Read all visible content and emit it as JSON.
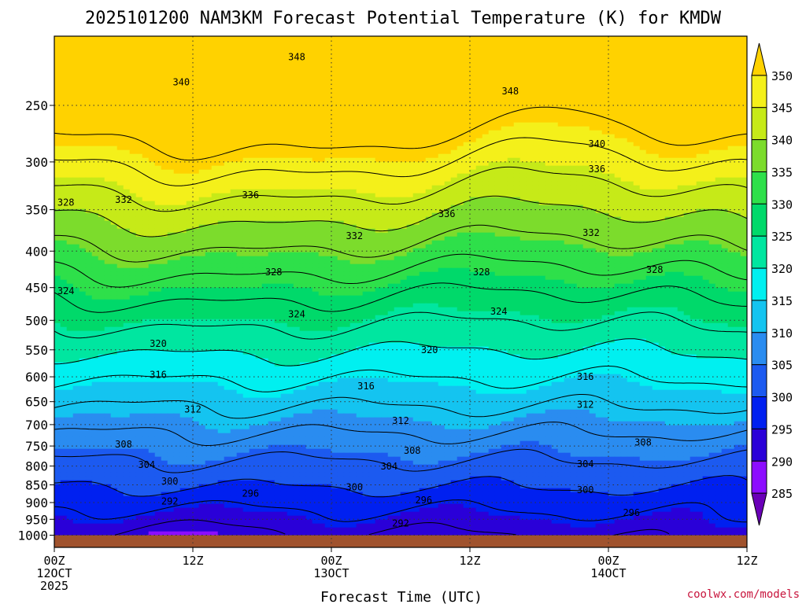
{
  "chart_data": {
    "type": "heatmap",
    "title": "2025101200 NAM3KM Forecast Potential Temperature (K) for KMDW",
    "xlabel": "Forecast Time (UTC)",
    "ylabel": "",
    "pressure_ticks": [
      250,
      300,
      350,
      400,
      450,
      500,
      550,
      600,
      650,
      700,
      750,
      800,
      850,
      900,
      950,
      1000
    ],
    "pressure_range_hpa": [
      200,
      1040
    ],
    "surface_hpa": 1000,
    "x_range_hours": [
      0,
      60
    ],
    "x_ticks": [
      {
        "hour": 0,
        "lines": [
          "00Z",
          "12OCT",
          "2025"
        ]
      },
      {
        "hour": 12,
        "lines": [
          "12Z"
        ]
      },
      {
        "hour": 24,
        "lines": [
          "00Z",
          "13OCT"
        ]
      },
      {
        "hour": 36,
        "lines": [
          "12Z"
        ]
      },
      {
        "hour": 48,
        "lines": [
          "00Z",
          "14OCT"
        ]
      },
      {
        "hour": 60,
        "lines": [
          "12Z"
        ]
      }
    ],
    "colorbar": {
      "levels": [
        285,
        290,
        295,
        300,
        305,
        310,
        315,
        320,
        325,
        330,
        335,
        340,
        345,
        350
      ],
      "colors": [
        "#6a00b8",
        "#8c0dff",
        "#2a00d8",
        "#0020f0",
        "#1c5af0",
        "#2a8cf0",
        "#14c4f0",
        "#00f0f0",
        "#00e6a0",
        "#00d96a",
        "#2ee04a",
        "#7cdc2c",
        "#c6ea18",
        "#f4f01a",
        "#ffd200"
      ],
      "min": 280,
      "max": 355
    },
    "contour_interval_k": 4,
    "contour_labels": [
      {
        "value": 348,
        "hour": 21,
        "p": 214
      },
      {
        "value": 348,
        "hour": 39.5,
        "p": 239
      },
      {
        "value": 340,
        "hour": 11,
        "p": 232
      },
      {
        "value": 340,
        "hour": 47,
        "p": 283
      },
      {
        "value": 336,
        "hour": 47,
        "p": 307
      },
      {
        "value": 336,
        "hour": 17,
        "p": 334
      },
      {
        "value": 336,
        "hour": 34,
        "p": 355
      },
      {
        "value": 332,
        "hour": 6,
        "p": 339
      },
      {
        "value": 332,
        "hour": 26,
        "p": 381
      },
      {
        "value": 332,
        "hour": 46.5,
        "p": 377
      },
      {
        "value": 328,
        "hour": 1,
        "p": 342
      },
      {
        "value": 328,
        "hour": 19,
        "p": 428
      },
      {
        "value": 328,
        "hour": 37,
        "p": 428
      },
      {
        "value": 328,
        "hour": 52,
        "p": 425
      },
      {
        "value": 324,
        "hour": 1,
        "p": 455
      },
      {
        "value": 324,
        "hour": 21,
        "p": 490
      },
      {
        "value": 324,
        "hour": 38.5,
        "p": 486
      },
      {
        "value": 320,
        "hour": 9,
        "p": 539
      },
      {
        "value": 320,
        "hour": 32.5,
        "p": 550
      },
      {
        "value": 316,
        "hour": 9,
        "p": 596
      },
      {
        "value": 316,
        "hour": 27,
        "p": 618
      },
      {
        "value": 316,
        "hour": 46,
        "p": 600
      },
      {
        "value": 312,
        "hour": 12,
        "p": 666
      },
      {
        "value": 312,
        "hour": 30,
        "p": 691
      },
      {
        "value": 312,
        "hour": 46,
        "p": 656
      },
      {
        "value": 308,
        "hour": 6,
        "p": 746
      },
      {
        "value": 308,
        "hour": 31,
        "p": 761
      },
      {
        "value": 308,
        "hour": 51,
        "p": 741
      },
      {
        "value": 304,
        "hour": 8,
        "p": 797
      },
      {
        "value": 304,
        "hour": 29,
        "p": 801
      },
      {
        "value": 304,
        "hour": 46,
        "p": 795
      },
      {
        "value": 300,
        "hour": 10,
        "p": 840
      },
      {
        "value": 300,
        "hour": 26,
        "p": 857
      },
      {
        "value": 300,
        "hour": 46,
        "p": 864
      },
      {
        "value": 296,
        "hour": 17,
        "p": 874
      },
      {
        "value": 296,
        "hour": 32,
        "p": 893
      },
      {
        "value": 296,
        "hour": 50,
        "p": 930
      },
      {
        "value": 292,
        "hour": 10,
        "p": 897
      },
      {
        "value": 292,
        "hour": 30,
        "p": 962
      }
    ],
    "watermark": "coolwx.com/models"
  }
}
